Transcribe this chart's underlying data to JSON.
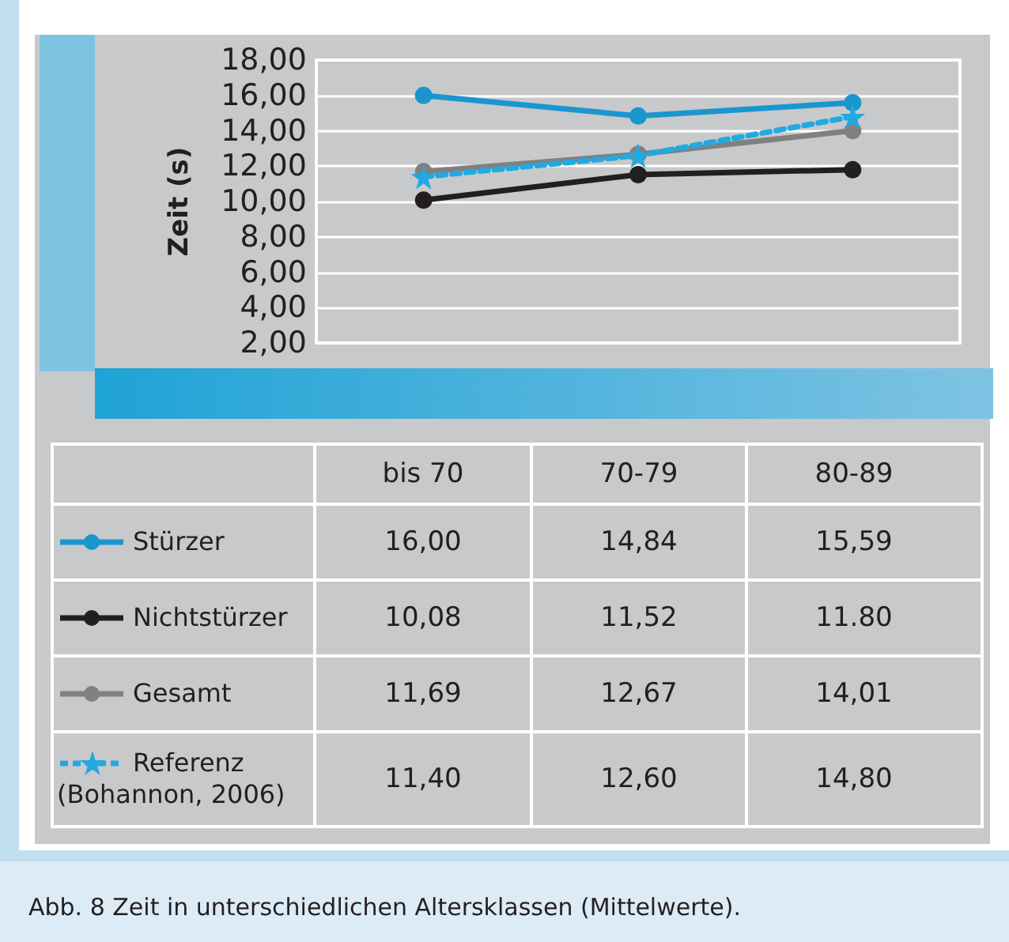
{
  "chart_data": {
    "type": "line",
    "title": "Abb. 8  Zeit in unterschiedlichen Altersklassen (Mittelwerte).",
    "ylabel": "Zeit (s)",
    "categories": [
      "bis 70",
      "70-79",
      "80-89"
    ],
    "series": [
      {
        "name": "Stürzer",
        "color": "#1a96cf",
        "values": [
          16.0,
          14.84,
          15.59
        ],
        "value_labels": [
          "16,00",
          "14,84",
          "15,59"
        ],
        "marker": "circle",
        "line_style": "solid"
      },
      {
        "name": "Nichtstürzer",
        "color": "#231f20",
        "values": [
          10.08,
          11.52,
          11.8
        ],
        "value_labels": [
          "10,08",
          "11,52",
          "11.80"
        ],
        "marker": "circle",
        "line_style": "solid"
      },
      {
        "name": "Gesamt",
        "color": "#808080",
        "values": [
          11.69,
          12.67,
          14.01
        ],
        "value_labels": [
          "11,69",
          "12,67",
          "14,01"
        ],
        "marker": "circle",
        "line_style": "solid"
      },
      {
        "name": "Referenz (Bohannon, 2006)",
        "color": "#22a9e1",
        "values": [
          11.4,
          12.6,
          14.8
        ],
        "value_labels": [
          "11,40",
          "12,60",
          "14,80"
        ],
        "marker": "star",
        "line_style": "dashed"
      }
    ],
    "ylim": [
      2,
      18
    ],
    "yticks": [
      {
        "value": 2,
        "label": "2,00"
      },
      {
        "value": 4,
        "label": "4,00"
      },
      {
        "value": 6,
        "label": "6,00"
      },
      {
        "value": 8,
        "label": "8,00"
      },
      {
        "value": 10,
        "label": "10,00"
      },
      {
        "value": 12,
        "label": "12,00"
      },
      {
        "value": 14,
        "label": "14,00"
      },
      {
        "value": 16,
        "label": "16,00"
      },
      {
        "value": 18,
        "label": "18,00"
      }
    ],
    "grid": "y",
    "legend": "bottom",
    "tick_labels": "y"
  }
}
